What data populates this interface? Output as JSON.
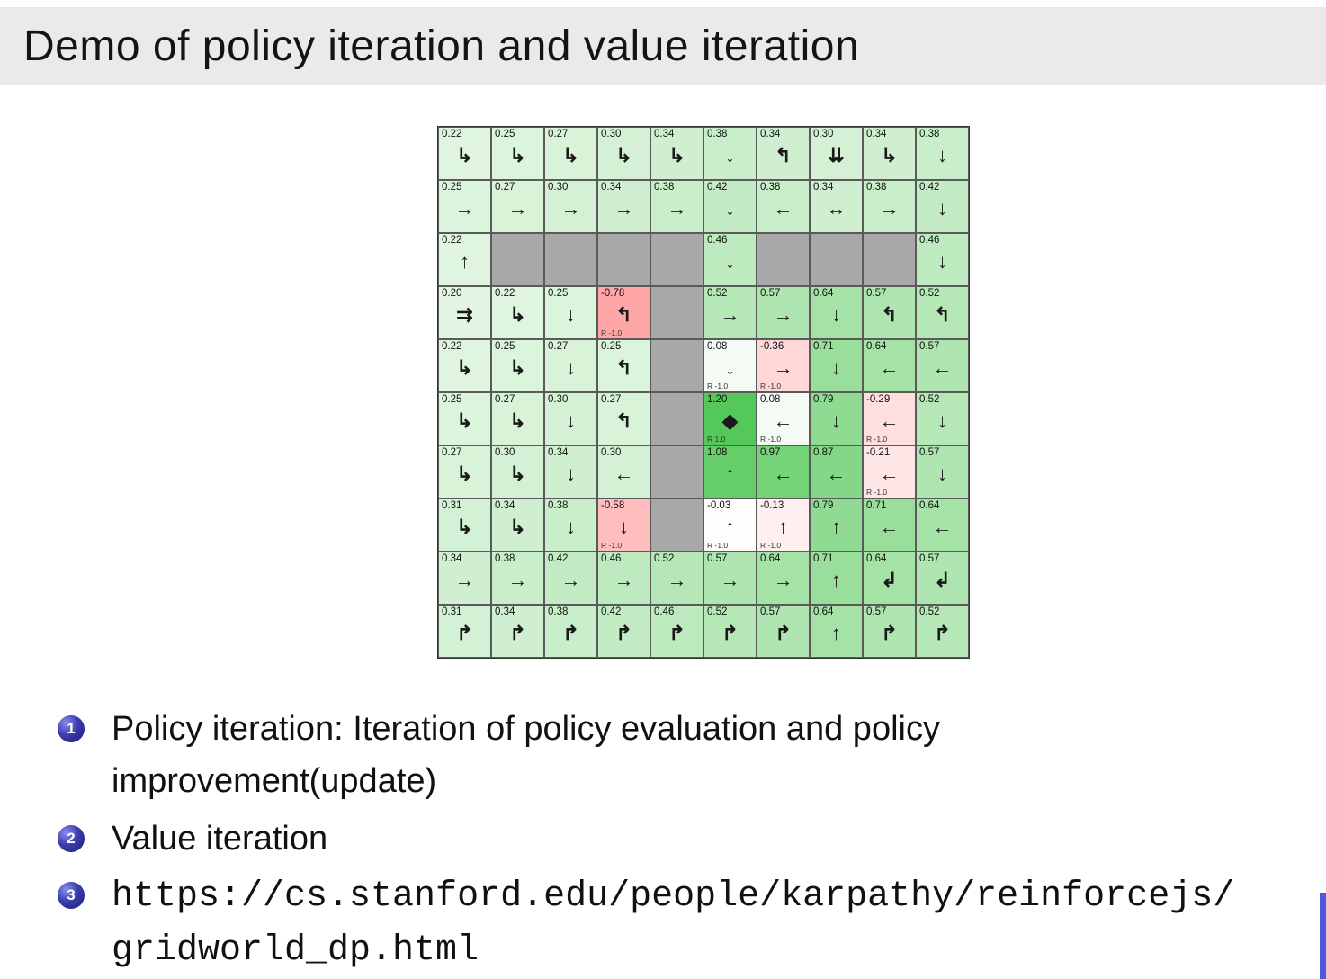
{
  "slide": {
    "title": "Demo of policy iteration and value iteration"
  },
  "colors": {
    "wall": "#a8a8a8",
    "positive_max": "#54c858",
    "negative_max": "#ff7878",
    "badge_blue": "#2c2c9c",
    "scrollbar_blue": "#4a5ad8",
    "value_scale_max": 1.2
  },
  "grid": {
    "rows": [
      [
        {
          "v": "0.22",
          "a": "↳"
        },
        {
          "v": "0.25",
          "a": "↳"
        },
        {
          "v": "0.27",
          "a": "↳"
        },
        {
          "v": "0.30",
          "a": "↳"
        },
        {
          "v": "0.34",
          "a": "↳"
        },
        {
          "v": "0.38",
          "a": "↓"
        },
        {
          "v": "0.34",
          "a": "↰"
        },
        {
          "v": "0.30",
          "a": "⇊"
        },
        {
          "v": "0.34",
          "a": "↳"
        },
        {
          "v": "0.38",
          "a": "↓"
        }
      ],
      [
        {
          "v": "0.25",
          "a": "→"
        },
        {
          "v": "0.27",
          "a": "→"
        },
        {
          "v": "0.30",
          "a": "→"
        },
        {
          "v": "0.34",
          "a": "→"
        },
        {
          "v": "0.38",
          "a": "→"
        },
        {
          "v": "0.42",
          "a": "↓"
        },
        {
          "v": "0.38",
          "a": "←"
        },
        {
          "v": "0.34",
          "a": "↔"
        },
        {
          "v": "0.38",
          "a": "→"
        },
        {
          "v": "0.42",
          "a": "↓"
        }
      ],
      [
        {
          "v": "0.22",
          "a": "↑"
        },
        {
          "wall": true
        },
        {
          "wall": true
        },
        {
          "wall": true
        },
        {
          "wall": true
        },
        {
          "v": "0.46",
          "a": "↓"
        },
        {
          "wall": true
        },
        {
          "wall": true
        },
        {
          "wall": true
        },
        {
          "v": "0.46",
          "a": "↓"
        }
      ],
      [
        {
          "v": "0.20",
          "a": "⇉"
        },
        {
          "v": "0.22",
          "a": "↳"
        },
        {
          "v": "0.25",
          "a": "↓"
        },
        {
          "v": "-0.78",
          "a": "↰",
          "r": "R -1.0"
        },
        {
          "wall": true
        },
        {
          "v": "0.52",
          "a": "→"
        },
        {
          "v": "0.57",
          "a": "→"
        },
        {
          "v": "0.64",
          "a": "↓"
        },
        {
          "v": "0.57",
          "a": "↰"
        },
        {
          "v": "0.52",
          "a": "↰"
        }
      ],
      [
        {
          "v": "0.22",
          "a": "↳"
        },
        {
          "v": "0.25",
          "a": "↳"
        },
        {
          "v": "0.27",
          "a": "↓"
        },
        {
          "v": "0.25",
          "a": "↰"
        },
        {
          "wall": true
        },
        {
          "v": "0.08",
          "a": "↓",
          "r": "R -1.0"
        },
        {
          "v": "-0.36",
          "a": "→",
          "r": "R -1.0"
        },
        {
          "v": "0.71",
          "a": "↓"
        },
        {
          "v": "0.64",
          "a": "←"
        },
        {
          "v": "0.57",
          "a": "←"
        }
      ],
      [
        {
          "v": "0.25",
          "a": "↳"
        },
        {
          "v": "0.27",
          "a": "↳"
        },
        {
          "v": "0.30",
          "a": "↓"
        },
        {
          "v": "0.27",
          "a": "↰"
        },
        {
          "wall": true
        },
        {
          "v": "1.20",
          "a": "◆",
          "r": "R 1.0"
        },
        {
          "v": "0.08",
          "a": "←",
          "r": "R -1.0"
        },
        {
          "v": "0.79",
          "a": "↓"
        },
        {
          "v": "-0.29",
          "a": "←",
          "r": "R -1.0"
        },
        {
          "v": "0.52",
          "a": "↓"
        }
      ],
      [
        {
          "v": "0.27",
          "a": "↳"
        },
        {
          "v": "0.30",
          "a": "↳"
        },
        {
          "v": "0.34",
          "a": "↓"
        },
        {
          "v": "0.30",
          "a": "←"
        },
        {
          "wall": true
        },
        {
          "v": "1.08",
          "a": "↑"
        },
        {
          "v": "0.97",
          "a": "←"
        },
        {
          "v": "0.87",
          "a": "←"
        },
        {
          "v": "-0.21",
          "a": "←",
          "r": "R -1.0"
        },
        {
          "v": "0.57",
          "a": "↓"
        }
      ],
      [
        {
          "v": "0.31",
          "a": "↳"
        },
        {
          "v": "0.34",
          "a": "↳"
        },
        {
          "v": "0.38",
          "a": "↓"
        },
        {
          "v": "-0.58",
          "a": "↓",
          "r": "R -1.0"
        },
        {
          "wall": true
        },
        {
          "v": "-0.03",
          "a": "↑",
          "r": "R -1.0"
        },
        {
          "v": "-0.13",
          "a": "↑",
          "r": "R -1.0"
        },
        {
          "v": "0.79",
          "a": "↑"
        },
        {
          "v": "0.71",
          "a": "←"
        },
        {
          "v": "0.64",
          "a": "←"
        }
      ],
      [
        {
          "v": "0.34",
          "a": "→"
        },
        {
          "v": "0.38",
          "a": "→"
        },
        {
          "v": "0.42",
          "a": "→"
        },
        {
          "v": "0.46",
          "a": "→"
        },
        {
          "v": "0.52",
          "a": "→"
        },
        {
          "v": "0.57",
          "a": "→"
        },
        {
          "v": "0.64",
          "a": "→"
        },
        {
          "v": "0.71",
          "a": "↑"
        },
        {
          "v": "0.64",
          "a": "↲"
        },
        {
          "v": "0.57",
          "a": "↲"
        }
      ],
      [
        {
          "v": "0.31",
          "a": "↱"
        },
        {
          "v": "0.34",
          "a": "↱"
        },
        {
          "v": "0.38",
          "a": "↱"
        },
        {
          "v": "0.42",
          "a": "↱"
        },
        {
          "v": "0.46",
          "a": "↱"
        },
        {
          "v": "0.52",
          "a": "↱"
        },
        {
          "v": "0.57",
          "a": "↱"
        },
        {
          "v": "0.64",
          "a": "↑"
        },
        {
          "v": "0.57",
          "a": "↱"
        },
        {
          "v": "0.52",
          "a": "↱"
        }
      ]
    ]
  },
  "bullets": [
    {
      "num": "1",
      "text": "Policy iteration: Iteration of policy evaluation and policy improvement(update)"
    },
    {
      "num": "2",
      "text": "Value iteration"
    },
    {
      "num": "3",
      "text": "https://cs.stanford.edu/people/karpathy/reinforcejs/gridworld_dp.html"
    }
  ]
}
